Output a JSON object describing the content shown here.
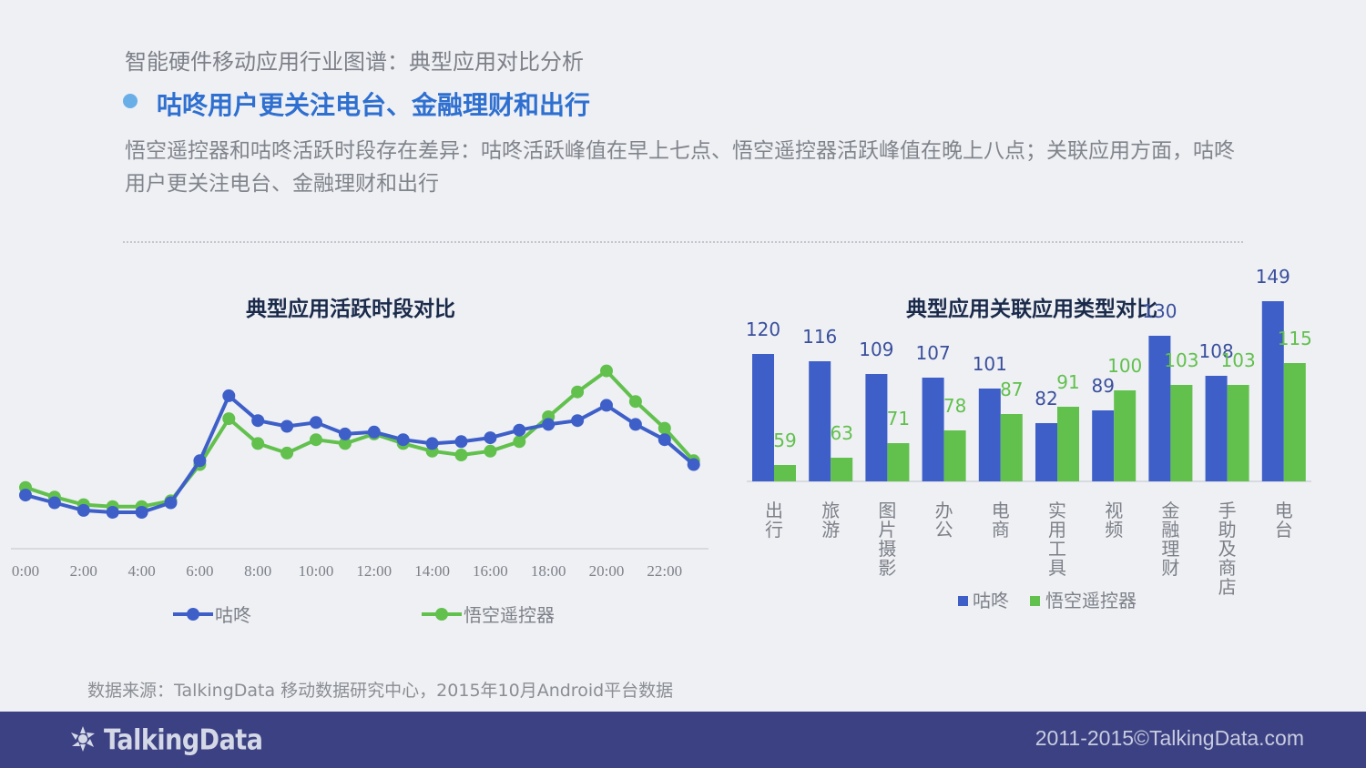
{
  "header": {
    "supertitle": "智能硬件移动应用行业图谱：典型应用对比分析",
    "headline": "咕咚用户更关注电台、金融理财和出行",
    "description": "悟空遥控器和咕咚活跃时段存在差异：咕咚活跃峰值在早上七点、悟空遥控器活跃峰值在晚上八点；关联应用方面，咕咚用户更关注电台、金融理财和出行"
  },
  "colors": {
    "gudong": "#3e5fc8",
    "wukong": "#62c04d",
    "headline": "#2e6fd0"
  },
  "chart_data": [
    {
      "type": "line",
      "title": "典型应用活跃时段对比",
      "x": [
        0,
        1,
        2,
        3,
        4,
        5,
        6,
        7,
        8,
        9,
        10,
        11,
        12,
        13,
        14,
        15,
        16,
        17,
        18,
        19,
        20,
        21,
        22,
        23
      ],
      "xticks": [
        "0:00",
        "2:00",
        "4:00",
        "6:00",
        "8:00",
        "10:00",
        "12:00",
        "14:00",
        "16:00",
        "18:00",
        "20:00",
        "22:00"
      ],
      "ylim": [
        0,
        100
      ],
      "series": [
        {
          "name": "咕咚",
          "values": [
            29,
            25,
            21,
            20,
            20,
            25,
            47,
            81,
            68,
            65,
            67,
            61,
            62,
            58,
            56,
            57,
            59,
            63,
            66,
            68,
            76,
            66,
            58,
            45
          ]
        },
        {
          "name": "悟空遥控器",
          "values": [
            33,
            28,
            24,
            23,
            23,
            26,
            45,
            69,
            56,
            51,
            58,
            56,
            61,
            56,
            52,
            50,
            52,
            57,
            70,
            83,
            94,
            78,
            64,
            47
          ]
        }
      ],
      "legend": [
        "咕咚",
        "悟空遥控器"
      ]
    },
    {
      "type": "bar",
      "title": "典型应用关联应用类型对比",
      "categories": [
        "出行",
        "旅游",
        "图片摄影",
        "办公",
        "电商",
        "实用工具",
        "视频",
        "金融理财",
        "手助及商店",
        "电台"
      ],
      "series": [
        {
          "name": "咕咚",
          "values": [
            120,
            116,
            109,
            107,
            101,
            82,
            89,
            130,
            108,
            149
          ]
        },
        {
          "name": "悟空遥控器",
          "values": [
            59,
            63,
            71,
            78,
            87,
            91,
            100,
            103,
            103,
            115
          ]
        }
      ],
      "ylim": [
        50,
        160
      ],
      "legend": [
        "咕咚",
        "悟空遥控器"
      ]
    }
  ],
  "source": "数据来源：TalkingData 移动数据研究中心，2015年10月Android平台数据",
  "footer": {
    "logo": "TalkingData",
    "copyright": "2011-2015©TalkingData.com"
  }
}
